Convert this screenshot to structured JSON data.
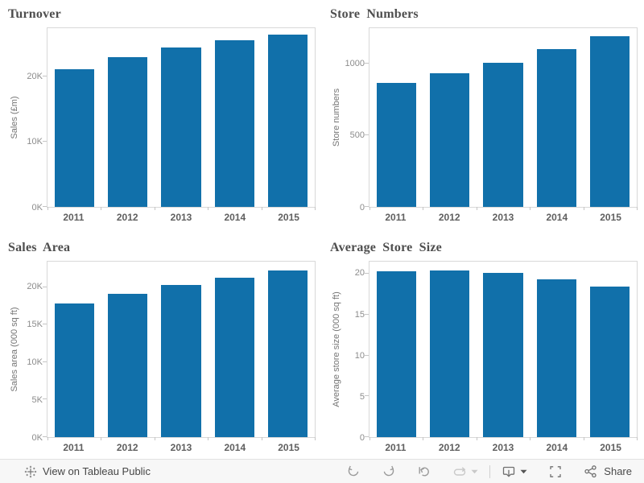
{
  "dashboard": {
    "background": "#ffffff"
  },
  "chart_data": [
    {
      "type": "bar",
      "title": "Turnover",
      "ylabel": "Sales (£m)",
      "xlabel": "",
      "categories": [
        "2011",
        "2012",
        "2013",
        "2014",
        "2015"
      ],
      "values": [
        21100,
        23000,
        24500,
        25600,
        26400
      ],
      "yticks": [
        {
          "value": 0,
          "label": "0K"
        },
        {
          "value": 10000,
          "label": "10K"
        },
        {
          "value": 20000,
          "label": "20K"
        }
      ],
      "ylim": [
        0,
        27400
      ],
      "grid": false,
      "legend": "none"
    },
    {
      "type": "bar",
      "title": "Store Numbers",
      "ylabel": "Store numbers",
      "xlabel": "",
      "categories": [
        "2011",
        "2012",
        "2013",
        "2014",
        "2015"
      ],
      "values": [
        870,
        935,
        1010,
        1105,
        1195
      ],
      "yticks": [
        {
          "value": 0,
          "label": "0"
        },
        {
          "value": 500,
          "label": "500"
        },
        {
          "value": 1000,
          "label": "1000"
        }
      ],
      "ylim": [
        0,
        1250
      ],
      "grid": false,
      "legend": "none"
    },
    {
      "type": "bar",
      "title": "Sales Area",
      "ylabel": "Sales area (000 sq ft)",
      "xlabel": "",
      "categories": [
        "2011",
        "2012",
        "2013",
        "2014",
        "2015"
      ],
      "values": [
        17800,
        19100,
        20300,
        21300,
        22200
      ],
      "yticks": [
        {
          "value": 0,
          "label": "0K"
        },
        {
          "value": 5000,
          "label": "5K"
        },
        {
          "value": 10000,
          "label": "10K"
        },
        {
          "value": 15000,
          "label": "15K"
        },
        {
          "value": 20000,
          "label": "20K"
        }
      ],
      "ylim": [
        0,
        23400
      ],
      "grid": false,
      "legend": "none"
    },
    {
      "type": "bar",
      "title": "Average Store Size",
      "ylabel": "Average store size (000 sq ft)",
      "xlabel": "",
      "categories": [
        "2011",
        "2012",
        "2013",
        "2014",
        "2015"
      ],
      "values": [
        20.3,
        20.4,
        20.1,
        19.3,
        18.4
      ],
      "yticks": [
        {
          "value": 0,
          "label": "0"
        },
        {
          "value": 5,
          "label": "5"
        },
        {
          "value": 10,
          "label": "10"
        },
        {
          "value": 15,
          "label": "15"
        },
        {
          "value": 20,
          "label": "20"
        }
      ],
      "ylim": [
        0,
        21.5
      ],
      "grid": false,
      "legend": "none"
    }
  ],
  "colors": {
    "bar_fill": "#1170aa",
    "chart_title": "#4e4e4e",
    "tick_label": "#8c8c8c",
    "x_category_label": "#5f5f5f",
    "axis_title": "#757575",
    "plot_border": "#d8d8d8",
    "toolbar_bg": "#f7f7f7",
    "toolbar_border": "#e2e2e2",
    "icon_gray": "#9a9a9a",
    "icon_disabled": "#c9c9c9",
    "icon_dark": "#707070"
  },
  "toolbar": {
    "view_on_tableau_public": "View on Tableau Public",
    "share_label": "Share",
    "buttons": [
      {
        "name": "undo",
        "icon": "undo-icon",
        "disabled": false
      },
      {
        "name": "redo",
        "icon": "redo-icon",
        "disabled": false
      },
      {
        "name": "revert",
        "icon": "revert-icon",
        "disabled": false
      },
      {
        "name": "refresh",
        "icon": "refresh-icon",
        "disabled": true,
        "has_dropdown": true
      },
      {
        "name": "download",
        "icon": "download-icon",
        "disabled": false,
        "has_dropdown": true
      },
      {
        "name": "fullscreen",
        "icon": "fullscreen-icon",
        "disabled": false
      },
      {
        "name": "share",
        "icon": "share-icon",
        "label": "Share",
        "disabled": false
      }
    ]
  }
}
